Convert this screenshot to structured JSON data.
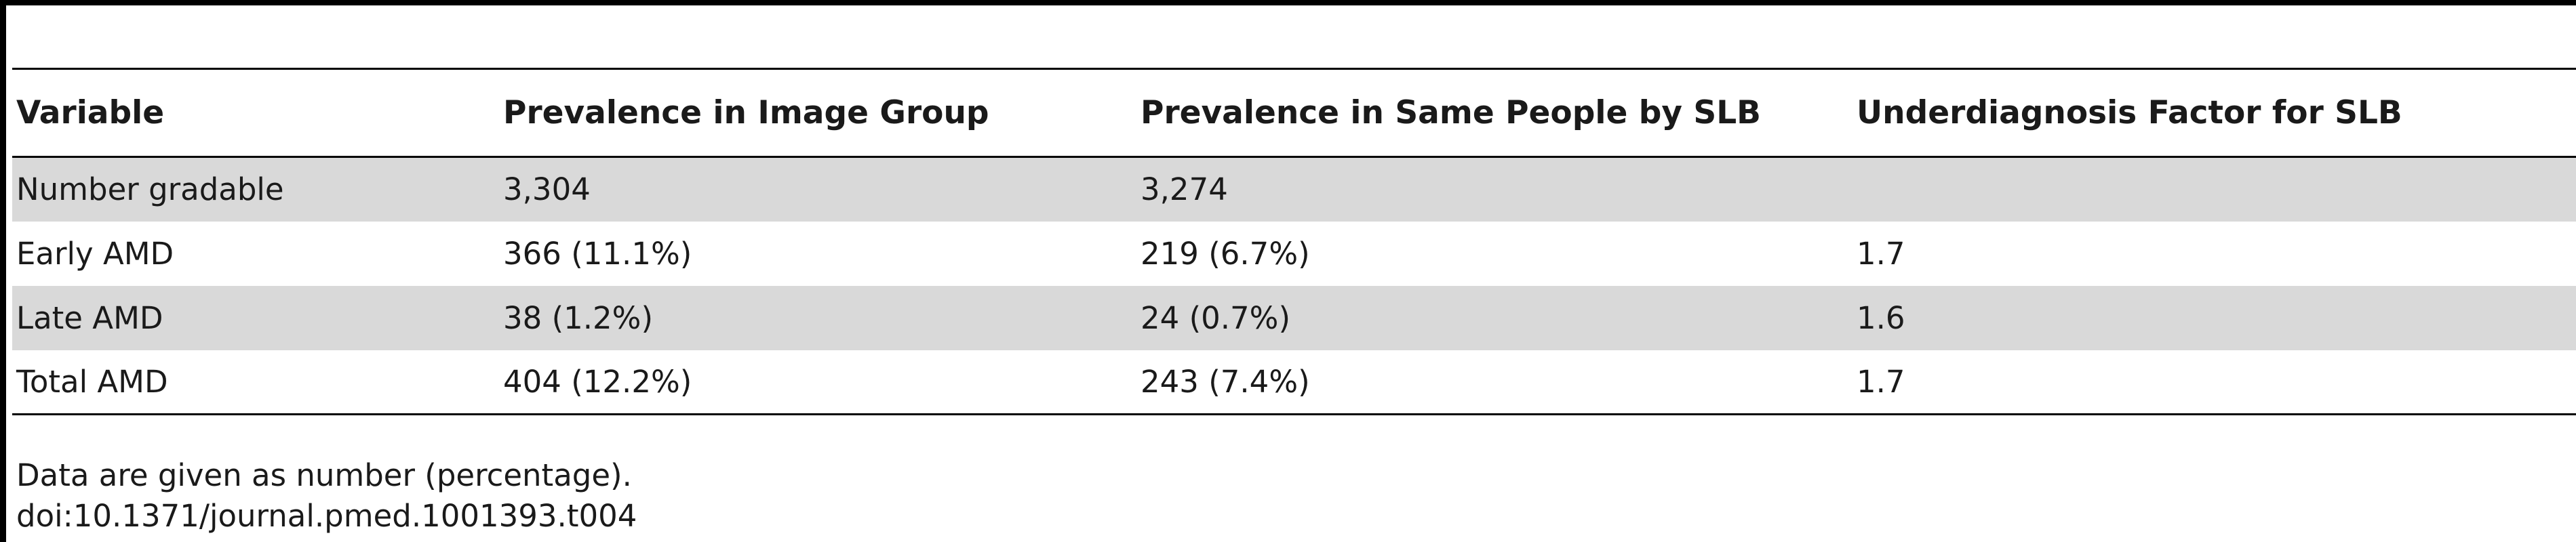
{
  "table": {
    "columns": [
      "Variable",
      "Prevalence in Image Group",
      "Prevalence in Same People by SLB",
      "Underdiagnosis Factor for SLB"
    ],
    "rows": [
      [
        "Number gradable",
        "3,304",
        "3,274",
        ""
      ],
      [
        "Early AMD",
        "366 (11.1%)",
        "219 (6.7%)",
        "1.7"
      ],
      [
        "Late AMD",
        "38 (1.2%)",
        "24 (0.7%)",
        "1.6"
      ],
      [
        "Total AMD",
        "404 (12.2%)",
        "243 (7.4%)",
        "1.7"
      ]
    ]
  },
  "footnotes": {
    "note": "Data are given as number (percentage).",
    "doi": "doi:10.1371/journal.pmed.1001393.t004"
  },
  "colors": {
    "shaded_row": "#d9d9d9",
    "rules": "#000000"
  }
}
